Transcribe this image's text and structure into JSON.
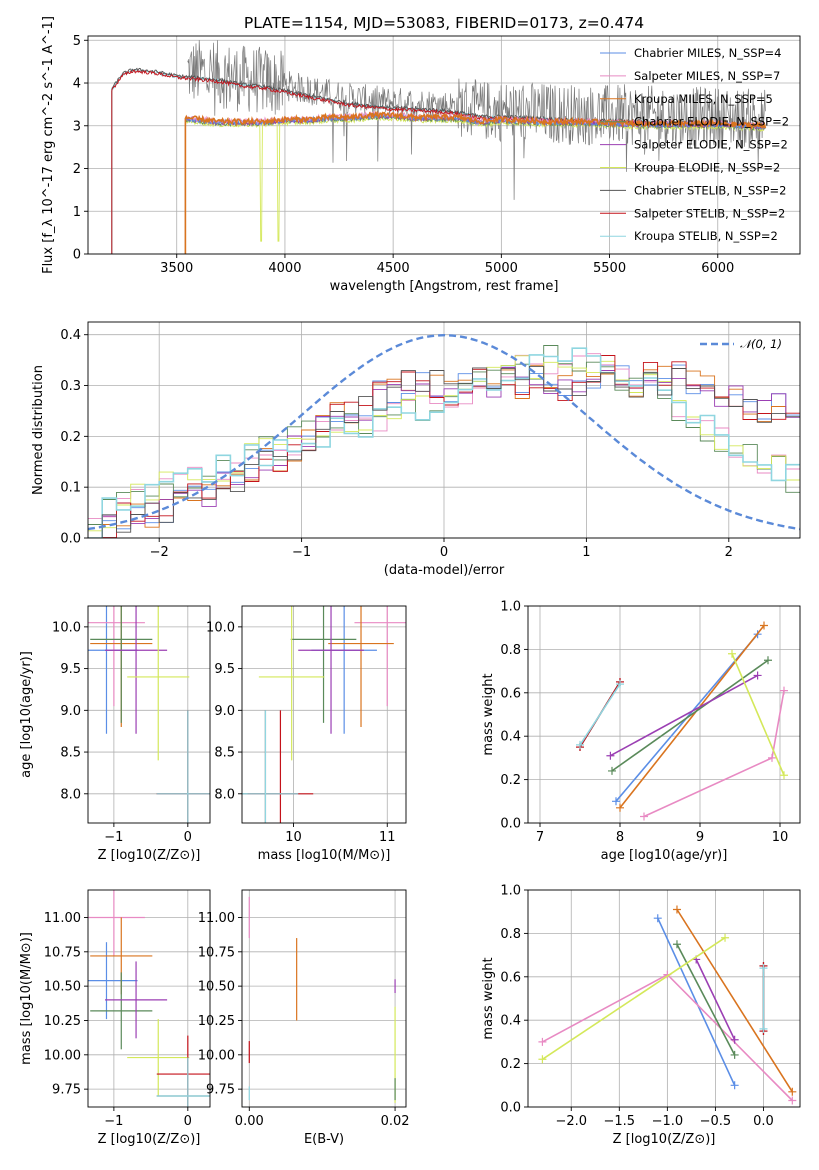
{
  "figure": {
    "title": "PLATE=1154, MJD=53083, FIBERID=0173, z=0.474"
  },
  "colors": {
    "chabrier_miles": "#5b8ee6",
    "salpeter_miles": "#e88ac3",
    "kroupa_miles": "#d9741f",
    "chabrier_elodie": "#5a8a5a",
    "salpeter_elodie": "#9b3fb3",
    "kroupa_elodie": "#d4e85a",
    "chabrier_stelib": "#555555",
    "salpeter_stelib": "#c4121a",
    "kroupa_stelib": "#8fd6e0",
    "gaussian": "#5b8ad8"
  },
  "chart_data": [
    {
      "id": "spectrum",
      "type": "line",
      "xlabel": "wavelength [Angstrom, rest frame]",
      "ylabel": "Flux [f_λ 10^-17 erg cm^-2 s^-1 A^-1]",
      "xlim": [
        3090,
        6380
      ],
      "ylim": [
        0,
        5.1
      ],
      "xticks": [
        3500,
        4000,
        4500,
        5000,
        5500,
        6000
      ],
      "yticks": [
        0,
        1,
        2,
        3,
        4,
        5
      ],
      "legend": "upper-right",
      "series": [
        {
          "name": "Chabrier MILES, N_SSP=4",
          "color_key": "chabrier_miles"
        },
        {
          "name": "Salpeter MILES, N_SSP=7",
          "color_key": "salpeter_miles"
        },
        {
          "name": "Kroupa MILES, N_SSP=5",
          "color_key": "kroupa_miles"
        },
        {
          "name": "Chabrier ELODIE, N_SSP=2",
          "color_key": "chabrier_elodie"
        },
        {
          "name": "Salpeter ELODIE, N_SSP=2",
          "color_key": "salpeter_elodie"
        },
        {
          "name": "Kroupa ELODIE, N_SSP=2",
          "color_key": "kroupa_elodie"
        },
        {
          "name": "Chabrier STELIB, N_SSP=2",
          "color_key": "chabrier_stelib"
        },
        {
          "name": "Salpeter STELIB, N_SSP=2",
          "color_key": "salpeter_stelib"
        },
        {
          "name": "Kroupa STELIB, N_SSP=2",
          "color_key": "kroupa_stelib"
        }
      ],
      "continuum_points": {
        "stelib_x": [
          3200,
          3250,
          3300,
          3400,
          3500,
          3600,
          3700,
          3800,
          3900,
          4000,
          4100,
          4200,
          4300,
          4400,
          4500,
          4600,
          4700,
          4800,
          4900,
          5000,
          5200,
          5400,
          5600,
          5800,
          6000,
          6200
        ],
        "stelib_y": [
          3.85,
          4.2,
          4.3,
          4.25,
          4.15,
          4.1,
          4.05,
          3.95,
          3.9,
          3.8,
          3.7,
          3.6,
          3.5,
          3.45,
          3.4,
          3.38,
          3.35,
          3.3,
          3.2,
          3.2,
          3.15,
          3.1,
          3.1,
          3.05,
          3.05,
          3.0
        ],
        "miles_x": [
          3540,
          3600,
          3700,
          3800,
          3900,
          4000,
          4100,
          4200,
          4300,
          4400,
          4500,
          4600,
          4700,
          4800,
          4900,
          5000,
          5200,
          5400,
          5600,
          5800,
          6000,
          6200
        ],
        "miles_y": [
          3.2,
          3.15,
          3.1,
          3.1,
          3.1,
          3.15,
          3.15,
          3.2,
          3.2,
          3.25,
          3.25,
          3.2,
          3.2,
          3.2,
          3.1,
          3.15,
          3.1,
          3.1,
          3.05,
          3.05,
          3.05,
          3.0
        ]
      }
    },
    {
      "id": "residuals",
      "type": "step-histogram",
      "xlabel": "(data-model)/error",
      "ylabel": "Normed distribution",
      "xlim": [
        -2.5,
        2.5
      ],
      "ylim": [
        0,
        0.425
      ],
      "xticks": [
        -2,
        -1,
        0,
        1,
        2
      ],
      "yticks": [
        0.0,
        0.1,
        0.2,
        0.3,
        0.4
      ],
      "legend": "upper-right",
      "gaussian_label": "𝒩(0, 1)",
      "bin_width": 0.1,
      "hist_group_a": [
        0.02,
        0.03,
        0.04,
        0.05,
        0.05,
        0.06,
        0.07,
        0.08,
        0.09,
        0.1,
        0.12,
        0.13,
        0.15,
        0.16,
        0.18,
        0.2,
        0.22,
        0.24,
        0.25,
        0.26,
        0.28,
        0.29,
        0.3,
        0.31,
        0.3,
        0.29,
        0.31,
        0.32,
        0.3,
        0.31,
        0.3,
        0.32,
        0.31,
        0.29,
        0.31,
        0.32,
        0.33,
        0.31,
        0.3,
        0.32,
        0.31,
        0.32,
        0.3,
        0.29,
        0.27,
        0.28,
        0.26,
        0.25,
        0.26,
        0.24
      ],
      "hist_group_b": [
        0.03,
        0.05,
        0.06,
        0.08,
        0.09,
        0.1,
        0.11,
        0.12,
        0.13,
        0.14,
        0.15,
        0.16,
        0.17,
        0.18,
        0.19,
        0.2,
        0.2,
        0.21,
        0.22,
        0.22,
        0.23,
        0.24,
        0.25,
        0.26,
        0.27,
        0.28,
        0.29,
        0.3,
        0.31,
        0.32,
        0.33,
        0.34,
        0.35,
        0.36,
        0.35,
        0.34,
        0.33,
        0.32,
        0.31,
        0.3,
        0.28,
        0.26,
        0.24,
        0.22,
        0.2,
        0.18,
        0.17,
        0.15,
        0.14,
        0.12
      ]
    },
    {
      "id": "age-vs-z",
      "type": "errorbar",
      "xlabel": "Z [log10(Z/Z⊙)]",
      "ylabel": "age [log10(age/yr)]",
      "xlim": [
        -1.35,
        0.3
      ],
      "ylim": [
        7.65,
        10.25
      ],
      "xticks": [
        -1,
        0
      ],
      "yticks": [
        8.0,
        8.5,
        9.0,
        9.5,
        10.0
      ]
    },
    {
      "id": "age-vs-mass",
      "type": "errorbar",
      "xlabel": "mass [log10(M/M⊙)]",
      "ylabel": "",
      "xlim": [
        9.45,
        11.2
      ],
      "ylim": [
        7.65,
        10.25
      ],
      "xticks": [
        10,
        11
      ],
      "yticks": [
        8.0,
        8.5,
        9.0,
        9.5,
        10.0
      ]
    },
    {
      "id": "massweight-vs-age",
      "type": "line",
      "xlabel": "age [log10(age/yr)]",
      "ylabel": "mass weight",
      "xlim": [
        6.85,
        10.25
      ],
      "ylim": [
        0,
        1.0
      ],
      "xticks": [
        7,
        8,
        9,
        10
      ],
      "yticks": [
        0.0,
        0.2,
        0.4,
        0.6,
        0.8,
        1.0
      ]
    },
    {
      "id": "mass-vs-z",
      "type": "errorbar",
      "xlabel": "Z [log10(Z/Z⊙)]",
      "ylabel": "mass [log10(M/M⊙)]",
      "xlim": [
        -1.35,
        0.3
      ],
      "ylim": [
        9.62,
        11.2
      ],
      "xticks": [
        -1,
        0
      ],
      "yticks": [
        9.75,
        10.0,
        10.25,
        10.5,
        10.75,
        11.0
      ]
    },
    {
      "id": "mass-vs-ebv",
      "type": "errorbar",
      "xlabel": "E(B-V)",
      "ylabel": "",
      "xlim": [
        -0.001,
        0.0215
      ],
      "ylim": [
        9.62,
        11.2
      ],
      "xticks": [
        0.0,
        0.02
      ],
      "yticks": [
        9.75,
        10.0,
        10.25,
        10.5,
        10.75,
        11.0
      ]
    },
    {
      "id": "massweight-vs-z",
      "type": "line",
      "xlabel": "Z [log10(Z/Z⊙)]",
      "ylabel": "mass weight",
      "xlim": [
        -2.45,
        0.38
      ],
      "ylim": [
        0,
        1.0
      ],
      "xticks": [
        -2.0,
        -1.5,
        -1.0,
        -0.5,
        0.0
      ],
      "yticks": [
        0.0,
        0.2,
        0.4,
        0.6,
        0.8,
        1.0
      ]
    }
  ],
  "ssp_results": [
    {
      "color_key": "chabrier_miles",
      "components": [
        {
          "age": 9.72,
          "z": -1.1,
          "mass": 10.54,
          "w": 0.87
        },
        {
          "age": 7.95,
          "z": -0.3,
          "mass": 9.7,
          "w": 0.1
        }
      ]
    },
    {
      "color_key": "salpeter_miles",
      "components": [
        {
          "age": 10.05,
          "z": -1.0,
          "mass": 11.0,
          "w": 0.61
        },
        {
          "age": 9.9,
          "z": -2.3,
          "mass": 10.92,
          "w": 0.3
        },
        {
          "age": 8.3,
          "z": 0.3,
          "mass": 9.97,
          "w": 0.03
        }
      ]
    },
    {
      "color_key": "kroupa_miles",
      "components": [
        {
          "age": 9.8,
          "z": -0.9,
          "mass": 10.72,
          "w": 0.91
        },
        {
          "age": 8.0,
          "z": 0.3,
          "mass": 10.7,
          "w": 0.07
        }
      ]
    },
    {
      "color_key": "chabrier_elodie",
      "components": [
        {
          "age": 9.85,
          "z": -0.9,
          "mass": 10.32,
          "w": 0.75
        },
        {
          "age": 7.9,
          "z": -0.3,
          "mass": 9.75,
          "w": 0.24
        }
      ]
    },
    {
      "color_key": "salpeter_elodie",
      "components": [
        {
          "age": 9.72,
          "z": -0.7,
          "mass": 10.4,
          "w": 0.68
        },
        {
          "age": 7.88,
          "z": -0.3,
          "mass": 10.42,
          "w": 0.31
        }
      ]
    },
    {
      "color_key": "kroupa_elodie",
      "components": [
        {
          "age": 9.4,
          "z": -0.4,
          "mass": 9.98,
          "w": 0.78
        },
        {
          "age": 10.05,
          "z": -2.3,
          "mass": 9.98,
          "w": 0.22
        }
      ]
    },
    {
      "color_key": "chabrier_stelib",
      "components": [
        {
          "age": 8.0,
          "z": 0.0,
          "mass": 9.7,
          "w": 0.65
        },
        {
          "age": 7.5,
          "z": 0.0,
          "mass": 9.7,
          "w": 0.35
        }
      ]
    },
    {
      "color_key": "salpeter_stelib",
      "components": [
        {
          "age": 8.0,
          "z": 0.0,
          "mass": 9.86,
          "w": 0.65
        },
        {
          "age": 7.5,
          "z": 0.0,
          "mass": 9.86,
          "w": 0.35
        }
      ]
    },
    {
      "color_key": "kroupa_stelib",
      "components": [
        {
          "age": 8.0,
          "z": 0.0,
          "mass": 9.7,
          "w": 0.64
        },
        {
          "age": 7.5,
          "z": 0.0,
          "mass": 9.7,
          "w": 0.36
        }
      ]
    }
  ],
  "ebv_values": [
    {
      "color_key": "kroupa_miles",
      "ebv": 0.0065,
      "mass": 10.55,
      "err": 0.3
    },
    {
      "color_key": "salpeter_miles",
      "ebv": 0.0,
      "mass": 11.0,
      "err": 0.15
    },
    {
      "color_key": "salpeter_stelib",
      "ebv": 0.0,
      "mass": 10.02,
      "err": 0.08
    },
    {
      "color_key": "salpeter_elodie",
      "ebv": 0.02,
      "mass": 10.5,
      "err": 0.05
    },
    {
      "color_key": "kroupa_elodie",
      "ebv": 0.02,
      "mass": 10.0,
      "err": 0.35
    },
    {
      "color_key": "chabrier_elodie",
      "ebv": 0.02,
      "mass": 9.75,
      "err": 0.08
    },
    {
      "color_key": "kroupa_stelib",
      "ebv": 0.0,
      "mass": 9.72,
      "err": 0.05
    }
  ]
}
